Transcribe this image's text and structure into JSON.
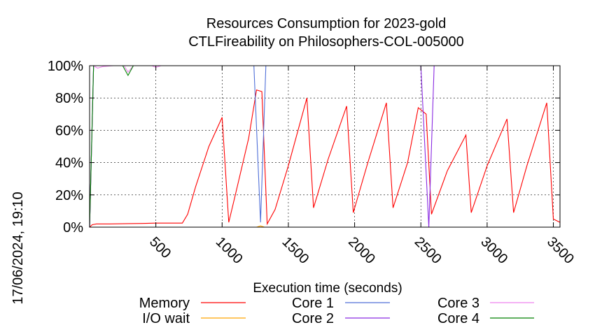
{
  "chart_data": {
    "type": "line",
    "title": [
      "Resources Consumption for 2023-gold",
      "CTLFireability on Philosophers-COL-005000"
    ],
    "xlabel": "Execution time (seconds)",
    "ylabel": "",
    "xlim": [
      0,
      3550
    ],
    "ylim": [
      0,
      100
    ],
    "x_ticks": [
      500,
      1000,
      1500,
      2000,
      2500,
      3000,
      3500
    ],
    "y_ticks": [
      0,
      20,
      40,
      60,
      80,
      100
    ],
    "y_tick_suffix": "%",
    "grid": true,
    "legend_position": "bottom",
    "side_label": "17/06/2024, 19:10",
    "series": [
      {
        "name": "Memory",
        "color": "#ff0000",
        "points": [
          [
            0,
            0
          ],
          [
            20,
            1.5
          ],
          [
            50,
            2
          ],
          [
            150,
            2
          ],
          [
            300,
            2.2
          ],
          [
            400,
            2.3
          ],
          [
            500,
            2.5
          ],
          [
            600,
            2.5
          ],
          [
            700,
            2.5
          ],
          [
            740,
            8
          ],
          [
            800,
            25
          ],
          [
            900,
            50
          ],
          [
            1000,
            68
          ],
          [
            1050,
            3
          ],
          [
            1100,
            20
          ],
          [
            1200,
            55
          ],
          [
            1260,
            85
          ],
          [
            1300,
            84
          ],
          [
            1340,
            2
          ],
          [
            1400,
            11
          ],
          [
            1500,
            38
          ],
          [
            1640,
            80
          ],
          [
            1690,
            12
          ],
          [
            1800,
            42
          ],
          [
            1940,
            75
          ],
          [
            1990,
            9
          ],
          [
            2100,
            40
          ],
          [
            2240,
            77
          ],
          [
            2290,
            12
          ],
          [
            2400,
            40
          ],
          [
            2480,
            74
          ],
          [
            2540,
            70
          ],
          [
            2580,
            8
          ],
          [
            2700,
            35
          ],
          [
            2840,
            57
          ],
          [
            2880,
            9
          ],
          [
            3000,
            38
          ],
          [
            3150,
            67
          ],
          [
            3200,
            9
          ],
          [
            3300,
            38
          ],
          [
            3450,
            77
          ],
          [
            3500,
            5
          ],
          [
            3550,
            3
          ]
        ]
      },
      {
        "name": "I/O wait",
        "color": "#ffa500",
        "points": [
          [
            0,
            0
          ],
          [
            1260,
            0
          ],
          [
            1290,
            0.8
          ],
          [
            1320,
            0
          ],
          [
            3550,
            0
          ]
        ]
      },
      {
        "name": "Core 1",
        "color": "#4f6fd8",
        "points": [
          [
            0,
            0
          ],
          [
            30,
            100
          ],
          [
            1240,
            100
          ],
          [
            1290,
            3
          ],
          [
            1330,
            100
          ],
          [
            3550,
            100
          ]
        ]
      },
      {
        "name": "Core 2",
        "color": "#8a2be2",
        "points": [
          [
            0,
            0
          ],
          [
            30,
            100
          ],
          [
            2500,
            100
          ],
          [
            2560,
            0
          ],
          [
            2600,
            100
          ],
          [
            3550,
            100
          ]
        ]
      },
      {
        "name": "Core 3",
        "color": "#ee82ee",
        "points": [
          [
            0,
            0
          ],
          [
            30,
            100
          ],
          [
            60,
            98.5
          ],
          [
            100,
            99.5
          ],
          [
            180,
            100
          ],
          [
            260,
            100
          ],
          [
            290,
            96
          ],
          [
            330,
            100
          ],
          [
            470,
            100
          ],
          [
            500,
            99
          ],
          [
            540,
            100
          ],
          [
            3550,
            100
          ]
        ]
      },
      {
        "name": "Core 4",
        "color": "#008000",
        "points": [
          [
            0,
            0
          ],
          [
            30,
            100
          ],
          [
            250,
            100
          ],
          [
            290,
            94
          ],
          [
            330,
            100
          ],
          [
            3550,
            100
          ]
        ]
      }
    ]
  }
}
